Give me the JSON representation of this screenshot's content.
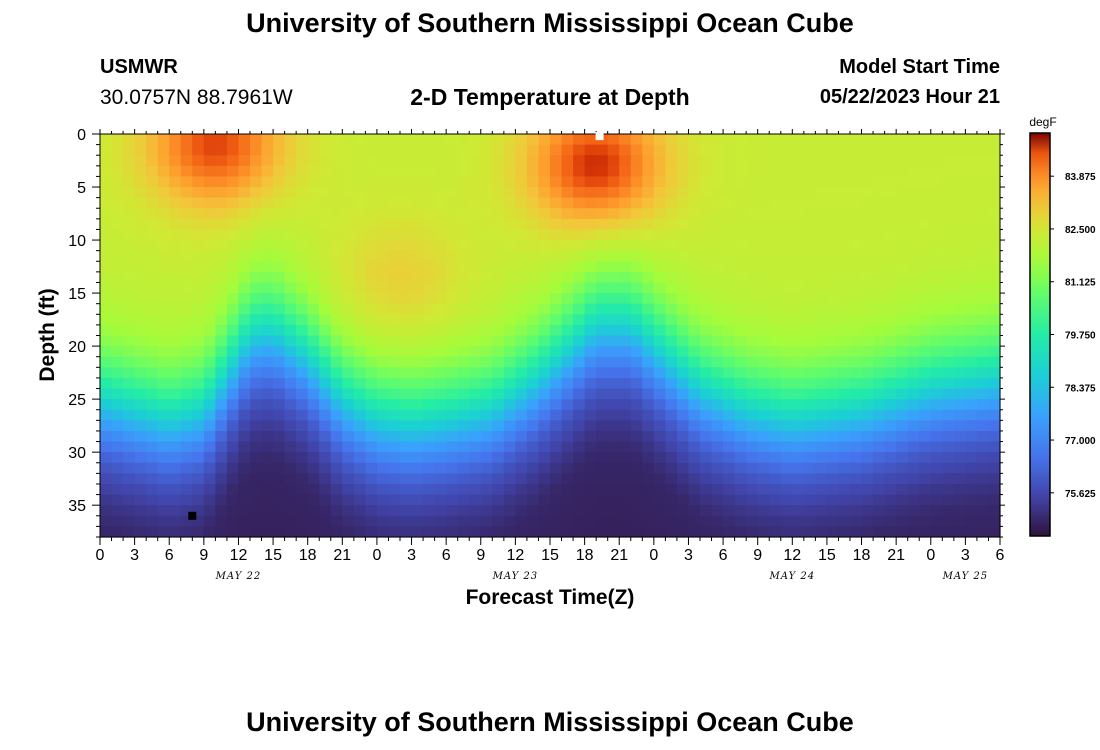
{
  "header": {
    "title": "University of Southern Mississippi Ocean Cube",
    "station_id": "USMWR",
    "coords": "30.0757N  88.7961W",
    "model_start_label": "Model Start Time",
    "model_start_value": "05/22/2023 Hour 21"
  },
  "footer": {
    "title": "University of Southern Mississippi Ocean Cube"
  },
  "chart_data": {
    "type": "heatmap",
    "title": "2-D Temperature at Depth",
    "xlabel": "Forecast Time(Z)",
    "ylabel": "Depth (ft)",
    "x_range_hours": [
      0,
      78
    ],
    "x_ticks": [
      "0",
      "3",
      "6",
      "9",
      "12",
      "15",
      "18",
      "21",
      "0",
      "3",
      "6",
      "9",
      "12",
      "15",
      "18",
      "21",
      "0",
      "3",
      "6",
      "9",
      "12",
      "15",
      "18",
      "21",
      "0",
      "3",
      "6"
    ],
    "date_labels": [
      {
        "label": "MAY 22",
        "hour": 12
      },
      {
        "label": "MAY 23",
        "hour": 36
      },
      {
        "label": "MAY 24",
        "hour": 60
      },
      {
        "label": "MAY 25",
        "hour": 75
      }
    ],
    "y_range_ft": [
      0,
      38
    ],
    "y_ticks": [
      "0",
      "5",
      "10",
      "15",
      "20",
      "25",
      "30",
      "35"
    ],
    "colorbar": {
      "units": "degF",
      "min": 74.5,
      "max": 85.0,
      "ticks": [
        "83.875",
        "82.500",
        "81.125",
        "79.750",
        "78.375",
        "77.000",
        "75.625"
      ]
    },
    "thermocline_depth_ft": [
      {
        "hour": 0,
        "depth": 25
      },
      {
        "hour": 6,
        "depth": 27
      },
      {
        "hour": 9,
        "depth": 26
      },
      {
        "hour": 13,
        "depth": 19
      },
      {
        "hour": 15,
        "depth": 18.5
      },
      {
        "hour": 18,
        "depth": 21
      },
      {
        "hour": 21,
        "depth": 25
      },
      {
        "hour": 24,
        "depth": 27
      },
      {
        "hour": 27,
        "depth": 27.5
      },
      {
        "hour": 30,
        "depth": 27
      },
      {
        "hour": 34,
        "depth": 26
      },
      {
        "hour": 38,
        "depth": 23
      },
      {
        "hour": 40,
        "depth": 21
      },
      {
        "hour": 43,
        "depth": 18
      },
      {
        "hour": 46,
        "depth": 18
      },
      {
        "hour": 49,
        "depth": 21
      },
      {
        "hour": 52,
        "depth": 24
      },
      {
        "hour": 56,
        "depth": 26
      },
      {
        "hour": 60,
        "depth": 27
      },
      {
        "hour": 66,
        "depth": 26
      },
      {
        "hour": 72,
        "depth": 24
      },
      {
        "hour": 78,
        "depth": 23
      }
    ],
    "warm_spots": [
      {
        "hour": 10,
        "depth": 1,
        "value": 84.6
      },
      {
        "hour": 43,
        "depth": 3,
        "value": 84.8
      },
      {
        "hour": 26,
        "depth": 14,
        "value": 83.0
      }
    ],
    "markers": [
      {
        "hour": 43.3,
        "depth": 0.2,
        "color": "#ffffff"
      },
      {
        "hour": 8,
        "depth": 36,
        "color": "#000000"
      }
    ]
  }
}
